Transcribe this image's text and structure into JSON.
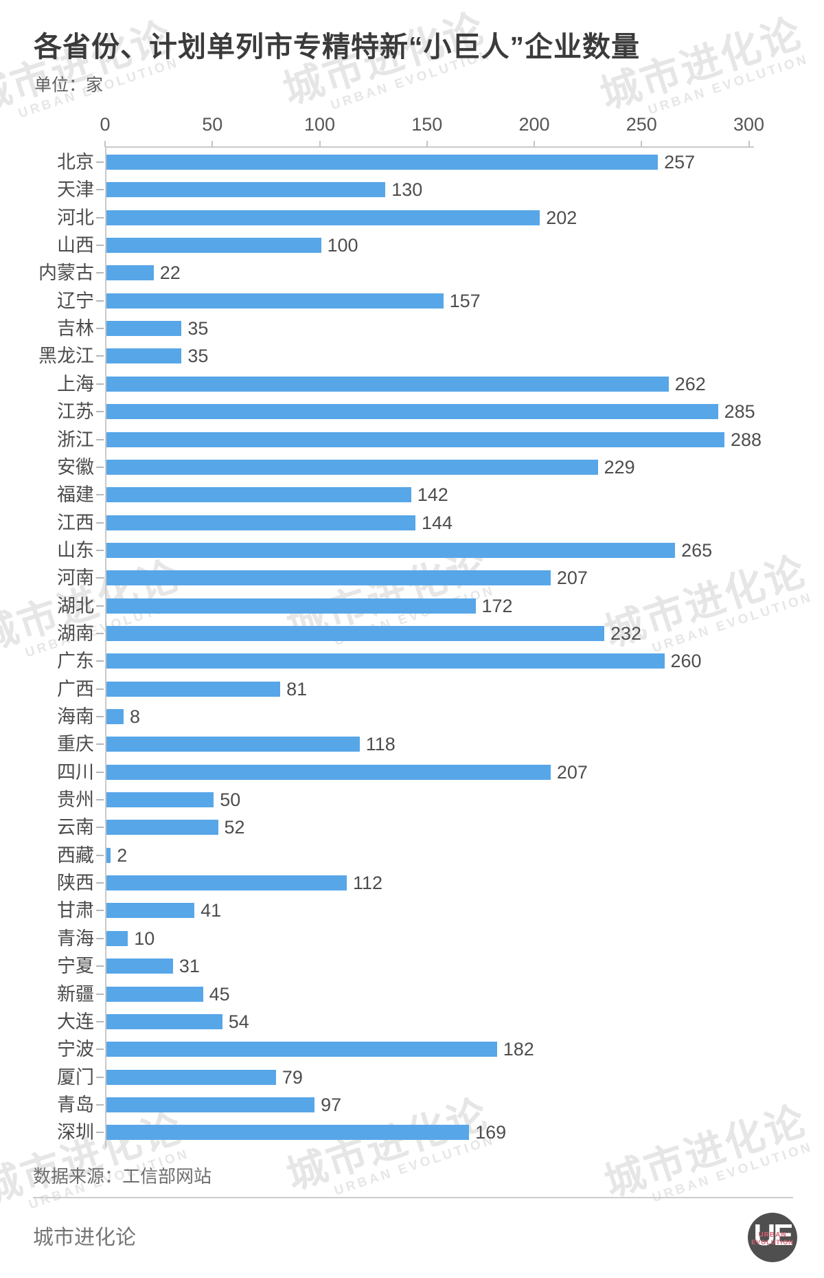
{
  "title": "各省份、计划单列市专精特新“小巨人”企业数量",
  "unit": "单位：家",
  "chart_data": {
    "type": "bar",
    "orientation": "horizontal",
    "title": "各省份、计划单列市专精特新“小巨人”企业数量",
    "xlabel": "",
    "ylabel": "",
    "unit": "家",
    "xlim": [
      0,
      300
    ],
    "xticks": [
      0,
      50,
      100,
      150,
      200,
      250,
      300
    ],
    "grid": false,
    "value_labels": true,
    "bar_color": "#57a6e8",
    "categories": [
      "北京",
      "天津",
      "河北",
      "山西",
      "内蒙古",
      "辽宁",
      "吉林",
      "黑龙江",
      "上海",
      "江苏",
      "浙江",
      "安徽",
      "福建",
      "江西",
      "山东",
      "河南",
      "湖北",
      "湖南",
      "广东",
      "广西",
      "海南",
      "重庆",
      "四川",
      "贵州",
      "云南",
      "西藏",
      "陕西",
      "甘肃",
      "青海",
      "宁夏",
      "新疆",
      "大连",
      "宁波",
      "厦门",
      "青岛",
      "深圳"
    ],
    "values": [
      257,
      130,
      202,
      100,
      22,
      157,
      35,
      35,
      262,
      285,
      288,
      229,
      142,
      144,
      265,
      207,
      172,
      232,
      260,
      81,
      8,
      118,
      207,
      50,
      52,
      2,
      112,
      41,
      10,
      31,
      45,
      54,
      182,
      79,
      97,
      169
    ]
  },
  "footer": {
    "source": "数据来源：工信部网站",
    "brand": "城市进化论"
  },
  "logo": {
    "monogram": "UE",
    "line1": "URBAN",
    "line2": "EVOLUTION"
  },
  "watermark": {
    "text": "城市进化论",
    "subtext": "URBAN EVOLUTION"
  }
}
